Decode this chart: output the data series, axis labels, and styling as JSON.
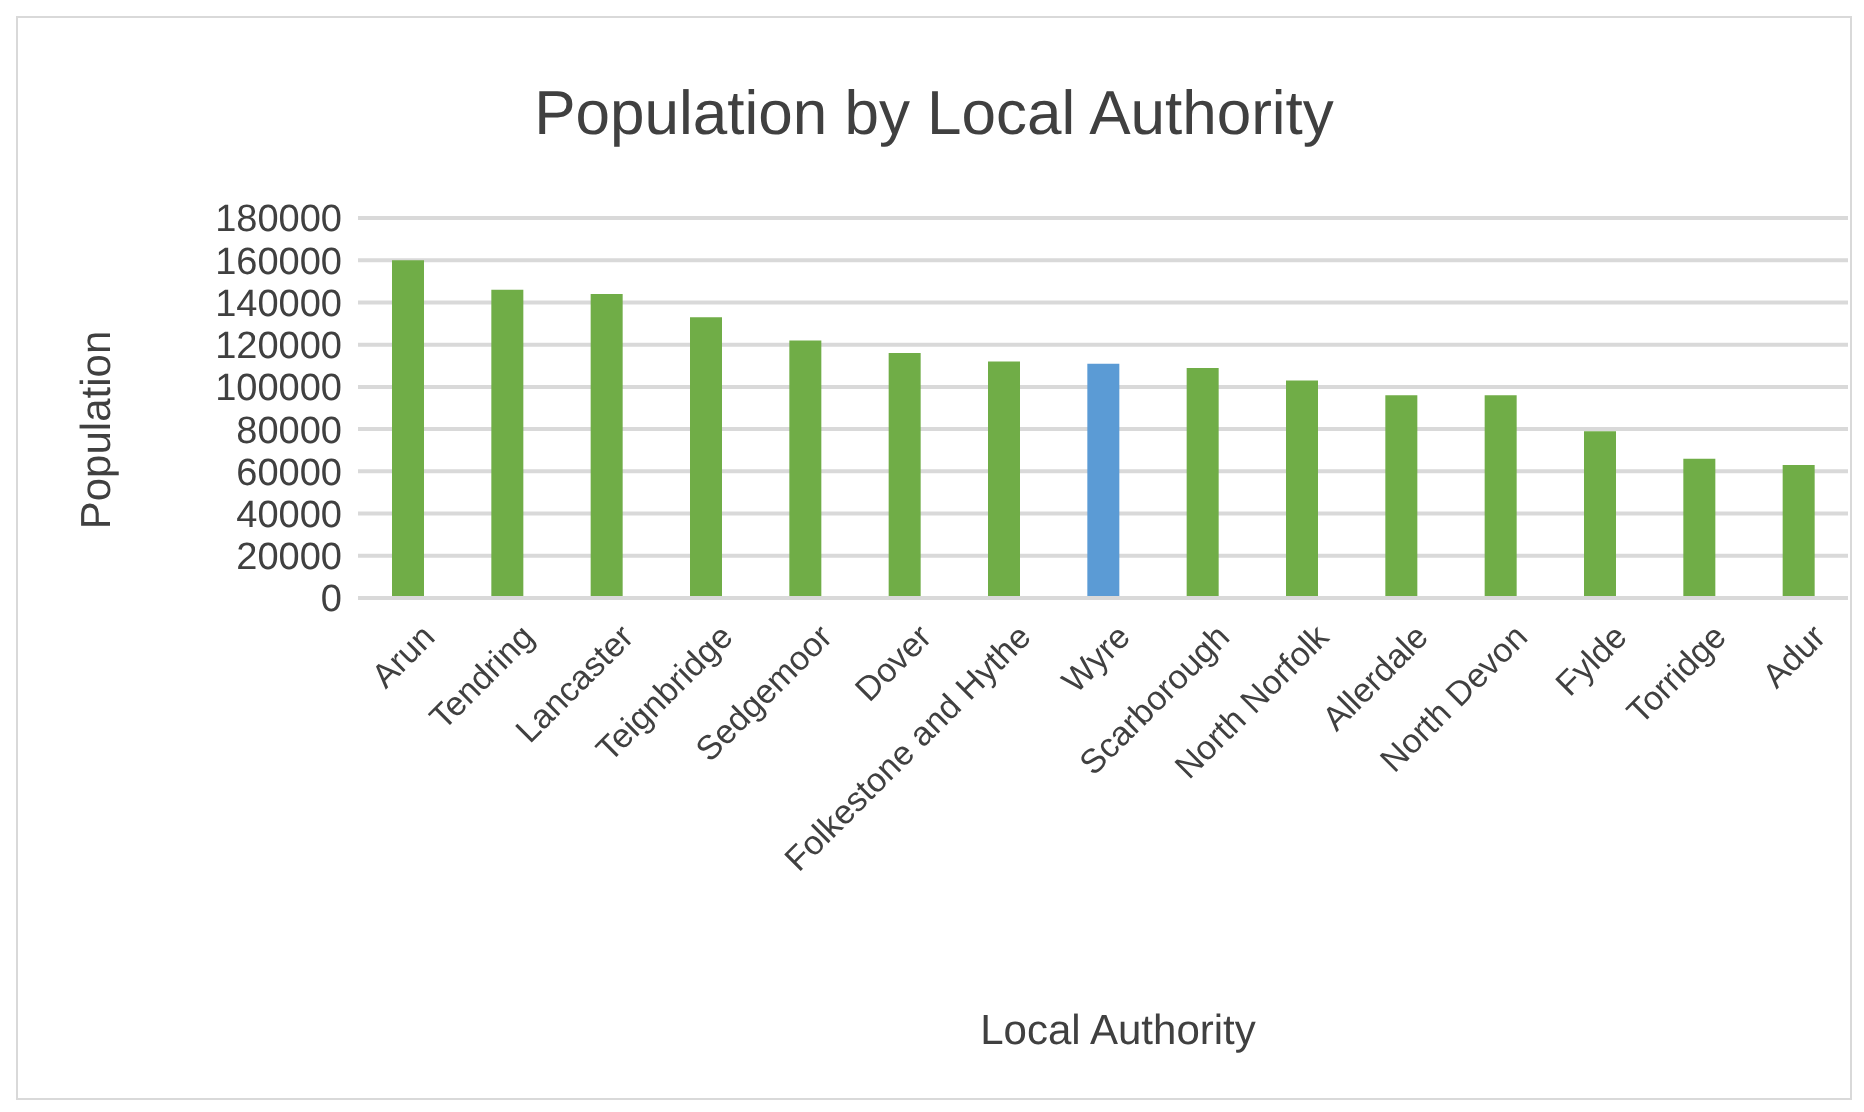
{
  "chart_data": {
    "type": "bar",
    "title": "Population by Local Authority",
    "xlabel": "Local Authority",
    "ylabel": "Population",
    "categories": [
      "Arun",
      "Tendring",
      "Lancaster",
      "Teignbridge",
      "Sedgemoor",
      "Dover",
      "Folkestone and Hythe",
      "Wyre",
      "Scarborough",
      "North Norfolk",
      "Allerdale",
      "North Devon",
      "Fylde",
      "Torridge",
      "Adur"
    ],
    "values": [
      160000,
      146000,
      144000,
      133000,
      122000,
      116000,
      112000,
      111000,
      109000,
      103000,
      96000,
      96000,
      79000,
      66000,
      63000
    ],
    "colors": [
      "#70ad47",
      "#70ad47",
      "#70ad47",
      "#70ad47",
      "#70ad47",
      "#70ad47",
      "#70ad47",
      "#5b9bd5",
      "#70ad47",
      "#70ad47",
      "#70ad47",
      "#70ad47",
      "#70ad47",
      "#70ad47",
      "#70ad47"
    ],
    "ylim": [
      0,
      180000
    ],
    "yticks": [
      0,
      20000,
      40000,
      60000,
      80000,
      100000,
      120000,
      140000,
      160000,
      180000
    ],
    "grid": "y",
    "legend": false
  }
}
